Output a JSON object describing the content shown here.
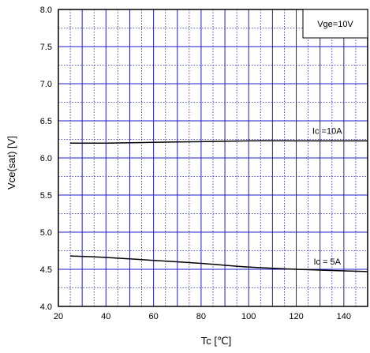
{
  "chart_data": {
    "type": "line",
    "xlabel": "Tc [℃]",
    "ylabel": "Vce(sat) [V]",
    "xlim": [
      20,
      150
    ],
    "ylim": [
      4.0,
      8.0
    ],
    "x_ticks": [
      20,
      40,
      60,
      80,
      100,
      120,
      140
    ],
    "y_ticks": [
      4.0,
      4.5,
      5.0,
      5.5,
      6.0,
      6.5,
      7.0,
      7.5,
      8.0
    ],
    "y_tick_labels": [
      "4.0",
      "4.5",
      "5.0",
      "5.5",
      "6.0",
      "6.5",
      "7.0",
      "7.5",
      "8.0"
    ],
    "grid": {
      "major": true,
      "minor": true,
      "major_color": "#1e1ec8",
      "minor_color": "#1e1ec8"
    },
    "legend_box": {
      "text": "Vge=10V",
      "placement": "top-right"
    },
    "series": [
      {
        "name": "Ic =10A",
        "color": "#000000",
        "x": [
          25,
          40,
          60,
          80,
          100,
          120,
          150
        ],
        "y": [
          6.2,
          6.2,
          6.21,
          6.22,
          6.23,
          6.23,
          6.23
        ]
      },
      {
        "name": "Ic = 5A",
        "color": "#000000",
        "x": [
          25,
          40,
          60,
          80,
          100,
          120,
          150
        ],
        "y": [
          4.68,
          4.66,
          4.62,
          4.58,
          4.53,
          4.5,
          4.47
        ]
      }
    ]
  }
}
